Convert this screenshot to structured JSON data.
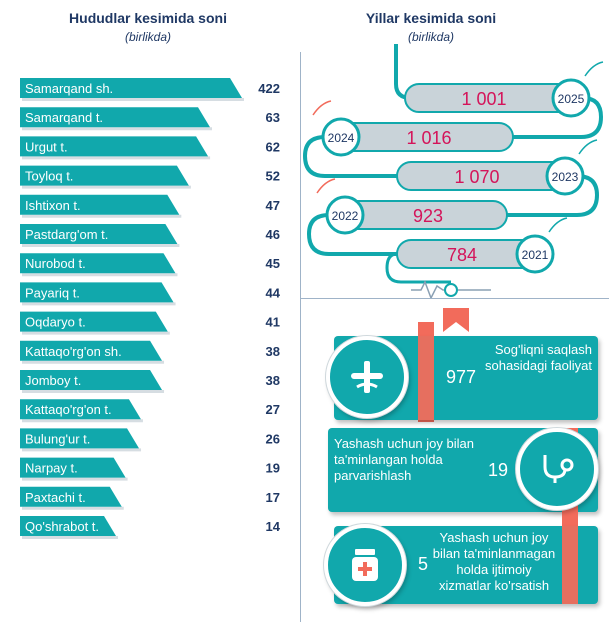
{
  "left_panel": {
    "title": "Hududlar kesimida soni",
    "subtitle": "(birlikda)"
  },
  "right_panel": {
    "title": "Yillar kesimida soni",
    "subtitle": "(birlikda)"
  },
  "colors": {
    "teal": "#11a8ac",
    "grey_bar": "#c9d3d9",
    "pink": "#d4145a",
    "coral": "#f26b5b",
    "navy": "#1f3864"
  },
  "chart_data": [
    {
      "type": "bar",
      "title": "Hududlar kesimida soni",
      "subtitle": "(birlikda)",
      "categories": [
        "Samarqand sh.",
        "Samarqand t.",
        "Urgut t.",
        "Toyloq t.",
        "Ishtixon t.",
        "Pastdarg'om t.",
        "Nurobod t.",
        "Payariq t.",
        "Oqdaryo t.",
        "Kattaqo'rg'on sh.",
        "Jomboy t.",
        "Kattaqo'rg'on t.",
        "Bulung'ur t.",
        "Narpay t.",
        "Paxtachi t.",
        "Qo'shrabot t."
      ],
      "values": [
        422,
        63,
        62,
        52,
        47,
        46,
        45,
        44,
        41,
        38,
        38,
        27,
        26,
        19,
        17,
        14
      ]
    },
    {
      "type": "bar",
      "title": "Yillar kesimida soni",
      "subtitle": "(birlikda)",
      "categories": [
        "2025",
        "2024",
        "2023",
        "2022",
        "2021"
      ],
      "values": [
        1001,
        1016,
        1070,
        923,
        784
      ],
      "value_labels": [
        "1 001",
        "1 016",
        "1 070",
        "923",
        "784"
      ]
    }
  ],
  "cards": [
    {
      "label": "Sog'liqni saqlash sohasidagi faoliyat",
      "value": "977",
      "icon": "medical-caduceus-icon"
    },
    {
      "label": "Yashash uchun joy bilan ta'minlangan holda parvarishlash",
      "value": "19",
      "icon": "stethoscope-icon"
    },
    {
      "label": "Yashash uchun joy bilan ta'minlanmagan holda ijtimoiy xizmatlar ko'rsatish",
      "value": "5",
      "icon": "medicine-jar-icon"
    }
  ]
}
